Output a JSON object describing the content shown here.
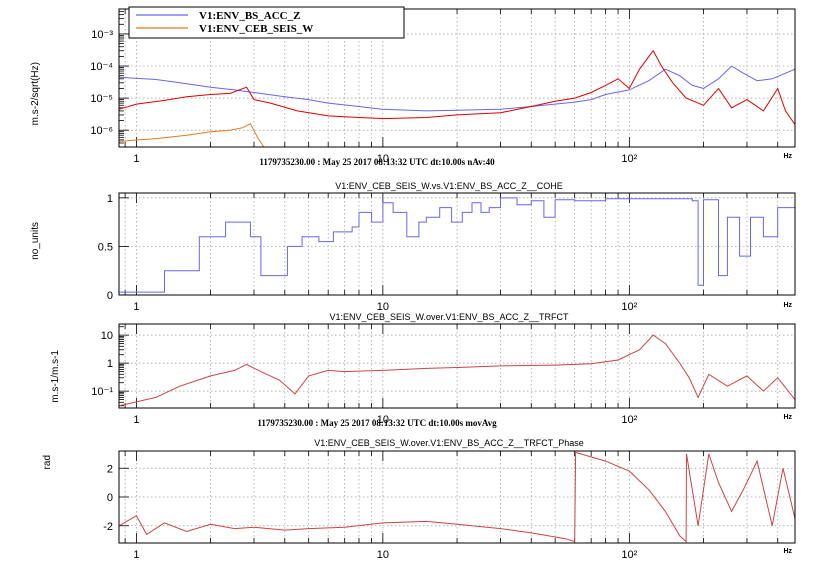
{
  "chart_data": [
    {
      "type": "line",
      "panel": "asd",
      "ylabel": "m.s-2/sqrt(Hz)",
      "xlabel_unit": "Hz",
      "x_scale": "log",
      "y_scale": "log",
      "xlim": [
        0.85,
        470
      ],
      "ylim": [
        3e-07,
        0.006
      ],
      "x_ticks": [
        {
          "v": 1,
          "label": "1"
        },
        {
          "v": 10,
          "label": "10"
        },
        {
          "v": 100,
          "label": "10²"
        }
      ],
      "y_ticks": [
        {
          "v": 1e-06,
          "label": "10⁻⁶"
        },
        {
          "v": 1e-05,
          "label": "10⁻⁵"
        },
        {
          "v": 0.0001,
          "label": "10⁻⁴"
        },
        {
          "v": 0.001,
          "label": "10⁻³"
        }
      ],
      "info": "1179735230.00 : May 25 2017 08:13:32 UTC dt:10.00s nAv:40",
      "legend": {
        "position": "top-left"
      },
      "series": [
        {
          "name": "V1:ENV_BS_ACC_Z",
          "color": "#6666ee",
          "legend": true,
          "points": [
            [
              0.85,
              4.5e-05
            ],
            [
              1.2,
              3.8e-05
            ],
            [
              1.5,
              3e-05
            ],
            [
              2,
              2.2e-05
            ],
            [
              2.5,
              1.8e-05
            ],
            [
              3,
              1.5e-05
            ],
            [
              4,
              1.1e-05
            ],
            [
              5,
              9e-06
            ],
            [
              6,
              7e-06
            ],
            [
              8,
              5.5e-06
            ],
            [
              10,
              4.5e-06
            ],
            [
              15,
              4e-06
            ],
            [
              20,
              4.2e-06
            ],
            [
              30,
              4.5e-06
            ],
            [
              40,
              5.5e-06
            ],
            [
              50,
              6.5e-06
            ],
            [
              60,
              7.5e-06
            ],
            [
              70,
              9e-06
            ],
            [
              80,
              1.3e-05
            ],
            [
              100,
              1.8e-05
            ],
            [
              120,
              3.5e-05
            ],
            [
              140,
              8e-05
            ],
            [
              160,
              5e-05
            ],
            [
              180,
              2.5e-05
            ],
            [
              200,
              2e-05
            ],
            [
              230,
              4e-05
            ],
            [
              260,
              0.0001
            ],
            [
              290,
              6e-05
            ],
            [
              330,
              3.5e-05
            ],
            [
              380,
              4e-05
            ],
            [
              430,
              6e-05
            ],
            [
              470,
              8e-05
            ]
          ]
        },
        {
          "name": "V1:ENV_CEB_SEIS_W",
          "color": "#e07a20",
          "legend": true,
          "points": [
            [
              0.85,
              4.5e-07
            ],
            [
              1.2,
              5.5e-07
            ],
            [
              1.6,
              7e-07
            ],
            [
              2,
              9e-07
            ],
            [
              2.4,
              1e-06
            ],
            [
              2.7,
              1.2e-06
            ],
            [
              2.9,
              1.6e-06
            ],
            [
              3.1,
              6e-07
            ],
            [
              3.4,
              2e-07
            ]
          ]
        },
        {
          "name": "",
          "color": "#dd0000",
          "legend": false,
          "points": [
            [
              0.85,
              4.5e-06
            ],
            [
              1,
              6.5e-06
            ],
            [
              1.3,
              8.5e-06
            ],
            [
              1.6,
              1.1e-05
            ],
            [
              2,
              1.3e-05
            ],
            [
              2.4,
              1.4e-05
            ],
            [
              2.8,
              2.2e-05
            ],
            [
              3,
              9e-06
            ],
            [
              3.5,
              7e-06
            ],
            [
              4.5,
              4e-06
            ],
            [
              6,
              2.8e-06
            ],
            [
              8,
              2.5e-06
            ],
            [
              10,
              2.3e-06
            ],
            [
              15,
              2.5e-06
            ],
            [
              20,
              3e-06
            ],
            [
              30,
              3.5e-06
            ],
            [
              40,
              5.5e-06
            ],
            [
              50,
              8e-06
            ],
            [
              60,
              1e-05
            ],
            [
              70,
              1.5e-05
            ],
            [
              80,
              2.5e-05
            ],
            [
              90,
              4e-05
            ],
            [
              100,
              2e-05
            ],
            [
              110,
              8e-05
            ],
            [
              125,
              0.0003
            ],
            [
              135,
              0.0001
            ],
            [
              150,
              3e-05
            ],
            [
              170,
              1e-05
            ],
            [
              200,
              6e-06
            ],
            [
              230,
              2e-05
            ],
            [
              260,
              5e-06
            ],
            [
              300,
              9e-06
            ],
            [
              350,
              4e-06
            ],
            [
              400,
              2e-05
            ],
            [
              430,
              4e-06
            ],
            [
              470,
              1.5e-06
            ]
          ]
        }
      ]
    },
    {
      "type": "line",
      "panel": "coherence",
      "title": "V1:ENV_CEB_SEIS_W.vs.V1:ENV_BS_ACC_Z__COHE",
      "ylabel": "no_units",
      "xlabel_unit": "Hz",
      "x_scale": "log",
      "xlim": [
        0.85,
        470
      ],
      "ylim": [
        0,
        1.05
      ],
      "x_ticks": [
        {
          "v": 1,
          "label": "1"
        },
        {
          "v": 10,
          "label": "10"
        },
        {
          "v": 100,
          "label": "10²"
        }
      ],
      "y_ticks": [
        {
          "v": 0,
          "label": "0"
        },
        {
          "v": 0.5,
          "label": "0.5"
        },
        {
          "v": 1,
          "label": "1"
        }
      ],
      "series": [
        {
          "name": "",
          "color": "#6666ee",
          "step": true,
          "points": [
            [
              0.85,
              0.03
            ],
            [
              1.3,
              0.25
            ],
            [
              1.8,
              0.6
            ],
            [
              2.3,
              0.75
            ],
            [
              2.9,
              0.6
            ],
            [
              3.2,
              0.2
            ],
            [
              4.1,
              0.5
            ],
            [
              4.7,
              0.6
            ],
            [
              5.5,
              0.55
            ],
            [
              6.3,
              0.65
            ],
            [
              7.5,
              0.7
            ],
            [
              8,
              0.85
            ],
            [
              9,
              0.75
            ],
            [
              10,
              0.95
            ],
            [
              11,
              0.85
            ],
            [
              12.5,
              0.6
            ],
            [
              14,
              0.75
            ],
            [
              15,
              0.8
            ],
            [
              17,
              0.9
            ],
            [
              19,
              0.75
            ],
            [
              21,
              0.85
            ],
            [
              23,
              0.95
            ],
            [
              25,
              0.85
            ],
            [
              27,
              0.9
            ],
            [
              30,
              1
            ],
            [
              35,
              0.93
            ],
            [
              40,
              0.97
            ],
            [
              45,
              0.8
            ],
            [
              50,
              0.98
            ],
            [
              60,
              0.97
            ],
            [
              80,
              0.99
            ],
            [
              100,
              0.99
            ],
            [
              150,
              0.99
            ],
            [
              180,
              0.97
            ],
            [
              190,
              0.1
            ],
            [
              200,
              0.98
            ],
            [
              210,
              0.98
            ],
            [
              230,
              0.2
            ],
            [
              250,
              0.8
            ],
            [
              280,
              0.4
            ],
            [
              310,
              0.8
            ],
            [
              350,
              0.6
            ],
            [
              400,
              0.9
            ],
            [
              470,
              0.95
            ]
          ]
        }
      ]
    },
    {
      "type": "line",
      "panel": "transfer",
      "title": "V1:ENV_CEB_SEIS_W.over.V1:ENV_BS_ACC_Z__TRFCT",
      "ylabel": "m.s-1/m.s-1",
      "xlabel_unit": "Hz",
      "x_scale": "log",
      "y_scale": "log",
      "xlim": [
        0.85,
        470
      ],
      "ylim": [
        0.025,
        25
      ],
      "x_ticks": [
        {
          "v": 1,
          "label": "1"
        },
        {
          "v": 10,
          "label": "10"
        },
        {
          "v": 100,
          "label": "10²"
        }
      ],
      "y_ticks": [
        {
          "v": 0.1,
          "label": "10⁻¹"
        },
        {
          "v": 1,
          "label": "1"
        },
        {
          "v": 10,
          "label": "10"
        }
      ],
      "info": "1179735230.00 : May 25 2017 08:13:32 UTC dt:10.00s movAvg",
      "series": [
        {
          "name": "",
          "color": "#cc4444",
          "points": [
            [
              0.85,
              0.03
            ],
            [
              1.2,
              0.06
            ],
            [
              1.5,
              0.15
            ],
            [
              2,
              0.35
            ],
            [
              2.5,
              0.55
            ],
            [
              2.8,
              0.9
            ],
            [
              3.2,
              0.5
            ],
            [
              3.8,
              0.25
            ],
            [
              4.4,
              0.08
            ],
            [
              5,
              0.35
            ],
            [
              6,
              0.55
            ],
            [
              7,
              0.5
            ],
            [
              10,
              0.55
            ],
            [
              15,
              0.65
            ],
            [
              20,
              0.7
            ],
            [
              30,
              0.8
            ],
            [
              50,
              0.85
            ],
            [
              70,
              0.95
            ],
            [
              90,
              1.3
            ],
            [
              110,
              3
            ],
            [
              125,
              10
            ],
            [
              140,
              5
            ],
            [
              160,
              1
            ],
            [
              175,
              0.3
            ],
            [
              190,
              0.06
            ],
            [
              210,
              0.4
            ],
            [
              250,
              0.15
            ],
            [
              300,
              0.35
            ],
            [
              350,
              0.1
            ],
            [
              400,
              0.3
            ],
            [
              470,
              0.05
            ]
          ]
        }
      ]
    },
    {
      "type": "line",
      "panel": "phase",
      "title": "V1:ENV_CEB_SEIS_W.over.V1:ENV_BS_ACC_Z__TRFCT_Phase",
      "ylabel": "rad",
      "xlabel_unit": "Hz",
      "x_scale": "log",
      "xlim": [
        0.85,
        470
      ],
      "ylim": [
        -3.2,
        3.2
      ],
      "x_ticks": [
        {
          "v": 1,
          "label": "1"
        },
        {
          "v": 10,
          "label": "10"
        },
        {
          "v": 100,
          "label": "10²"
        }
      ],
      "y_ticks": [
        {
          "v": -2,
          "label": "-2"
        },
        {
          "v": 0,
          "label": "0"
        },
        {
          "v": 2,
          "label": "2"
        }
      ],
      "series": [
        {
          "name": "",
          "color": "#cc4444",
          "points": [
            [
              0.85,
              -2
            ],
            [
              1,
              -1.3
            ],
            [
              1.1,
              -2.6
            ],
            [
              1.3,
              -1.8
            ],
            [
              1.6,
              -2.4
            ],
            [
              2,
              -1.9
            ],
            [
              2.5,
              -2.2
            ],
            [
              3,
              -2.1
            ],
            [
              4,
              -2.3
            ],
            [
              5,
              -2.2
            ],
            [
              7,
              -2.1
            ],
            [
              10,
              -1.8
            ],
            [
              15,
              -1.7
            ],
            [
              20,
              -1.9
            ],
            [
              30,
              -2.2
            ],
            [
              40,
              -2.5
            ],
            [
              55,
              -2.9
            ],
            [
              60,
              -3.1
            ],
            [
              60.5,
              3.1
            ],
            [
              80,
              2.5
            ],
            [
              100,
              1.8
            ],
            [
              120,
              0.5
            ],
            [
              140,
              -1
            ],
            [
              160,
              -2.7
            ],
            [
              170,
              -3.1
            ],
            [
              170.5,
              3
            ],
            [
              190,
              -2
            ],
            [
              210,
              3
            ],
            [
              230,
              1
            ],
            [
              260,
              -1
            ],
            [
              290,
              0.5
            ],
            [
              330,
              2.5
            ],
            [
              380,
              -2
            ],
            [
              420,
              2
            ],
            [
              470,
              -1.5
            ]
          ]
        }
      ]
    }
  ]
}
